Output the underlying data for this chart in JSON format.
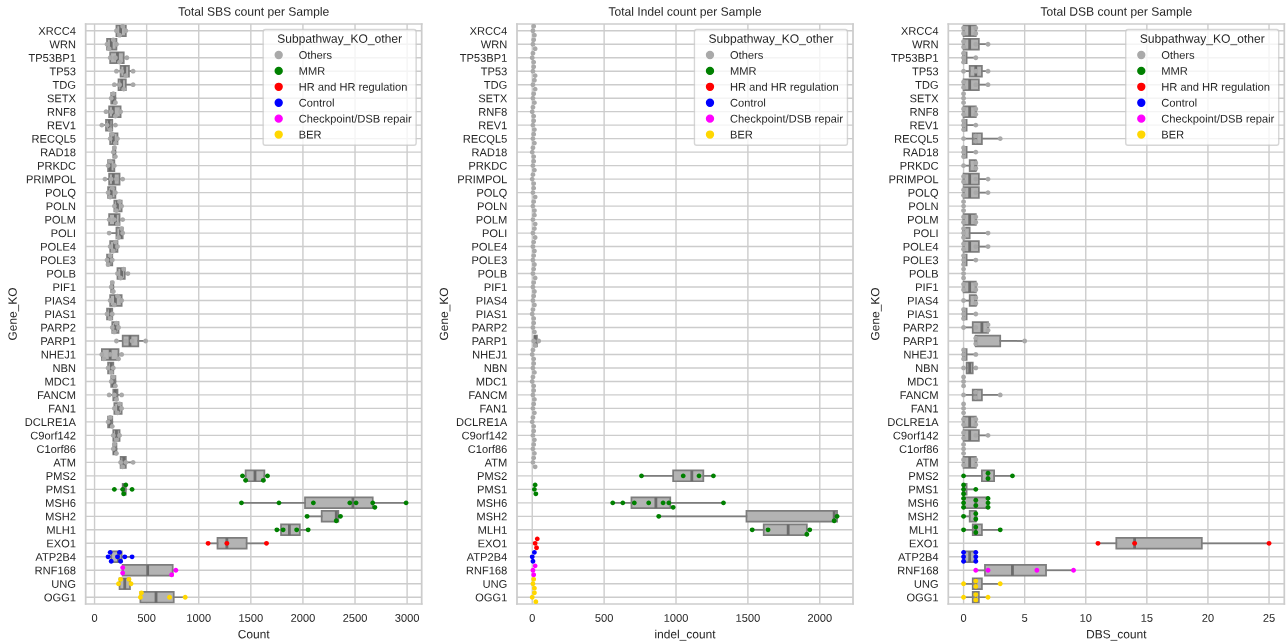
{
  "chart_data": [
    {
      "type": "box",
      "orientation": "horizontal",
      "title": "Total SBS count per Sample",
      "xlabel": "Count",
      "ylabel": "Gene_KO",
      "legend_title": "Subpathway_KO_other",
      "legend": "top right",
      "grid": true,
      "marker": "circle",
      "xlim": [
        -85,
        3140
      ],
      "xticks": [
        0,
        500,
        1000,
        1500,
        2000,
        2500,
        3000
      ],
      "categories": [
        "XRCC4",
        "WRN",
        "TP53BP1",
        "TP53",
        "TDG",
        "SETX",
        "RNF8",
        "REV1",
        "RECQL5",
        "RAD18",
        "PRKDC",
        "PRIMPOL",
        "POLQ",
        "POLN",
        "POLM",
        "POLI",
        "POLE4",
        "POLE3",
        "POLB",
        "PIF1",
        "PIAS4",
        "PIAS1",
        "PARP2",
        "PARP1",
        "NHEJ1",
        "NBN",
        "MDC1",
        "FANCM",
        "FAN1",
        "DCLRE1A",
        "C9orf142",
        "C1orf86",
        "ATM",
        "PMS2",
        "PMS1",
        "MSH6",
        "MSH2",
        "MLH1",
        "EXO1",
        "ATP2B4",
        "RNF168",
        "UNG",
        "OGG1"
      ],
      "series": [
        {
          "color": "#b3b3b3",
          "boxes": [
            {
              "low": 210,
              "q1": 210,
              "median": 250,
              "q3": 300,
              "high": 300
            },
            {
              "low": 120,
              "q1": 120,
              "median": 160,
              "q3": 210,
              "high": 210
            },
            {
              "low": 150,
              "q1": 150,
              "median": 220,
              "q3": 280,
              "high": 310
            },
            {
              "low": 210,
              "q1": 250,
              "median": 290,
              "q3": 330,
              "high": 370
            },
            {
              "low": 190,
              "q1": 230,
              "median": 260,
              "q3": 300,
              "high": 370
            },
            {
              "low": 160,
              "q1": 160,
              "median": 180,
              "q3": 200,
              "high": 200
            },
            {
              "low": 110,
              "q1": 140,
              "median": 180,
              "q3": 250,
              "high": 250
            },
            {
              "low": 70,
              "q1": 110,
              "median": 140,
              "q3": 170,
              "high": 200
            },
            {
              "low": 150,
              "q1": 150,
              "median": 180,
              "q3": 220,
              "high": 220
            },
            {
              "low": 180,
              "q1": 180,
              "median": 190,
              "q3": 200,
              "high": 200
            },
            {
              "low": 130,
              "q1": 130,
              "median": 150,
              "q3": 190,
              "high": 190
            },
            {
              "low": 100,
              "q1": 140,
              "median": 180,
              "q3": 240,
              "high": 270
            },
            {
              "low": 130,
              "q1": 130,
              "median": 160,
              "q3": 200,
              "high": 200
            },
            {
              "low": 190,
              "q1": 190,
              "median": 220,
              "q3": 260,
              "high": 260
            },
            {
              "low": 140,
              "q1": 140,
              "median": 200,
              "q3": 240,
              "high": 270
            },
            {
              "low": 140,
              "q1": 210,
              "median": 250,
              "q3": 270,
              "high": 270
            },
            {
              "low": 150,
              "q1": 150,
              "median": 190,
              "q3": 220,
              "high": 220
            },
            {
              "low": 120,
              "q1": 120,
              "median": 140,
              "q3": 170,
              "high": 170
            },
            {
              "low": 220,
              "q1": 220,
              "median": 260,
              "q3": 290,
              "high": 320
            },
            {
              "low": 160,
              "q1": 160,
              "median": 170,
              "q3": 180,
              "high": 180
            },
            {
              "low": 150,
              "q1": 150,
              "median": 200,
              "q3": 260,
              "high": 260
            },
            {
              "low": 120,
              "q1": 120,
              "median": 150,
              "q3": 170,
              "high": 170
            },
            {
              "low": 170,
              "q1": 170,
              "median": 200,
              "q3": 230,
              "high": 230
            },
            {
              "low": 210,
              "q1": 270,
              "median": 340,
              "q3": 420,
              "high": 490
            },
            {
              "low": 70,
              "q1": 70,
              "median": 150,
              "q3": 230,
              "high": 260
            },
            {
              "low": 130,
              "q1": 130,
              "median": 160,
              "q3": 180,
              "high": 180
            },
            {
              "low": 160,
              "q1": 160,
              "median": 180,
              "q3": 200,
              "high": 200
            },
            {
              "low": 140,
              "q1": 180,
              "median": 200,
              "q3": 220,
              "high": 260
            },
            {
              "low": 190,
              "q1": 190,
              "median": 230,
              "q3": 260,
              "high": 260
            },
            {
              "low": 130,
              "q1": 130,
              "median": 150,
              "q3": 170,
              "high": 170
            },
            {
              "low": 180,
              "q1": 180,
              "median": 210,
              "q3": 240,
              "high": 240
            },
            {
              "low": 180,
              "q1": 180,
              "median": 190,
              "q3": 210,
              "high": 210
            },
            {
              "low": 250,
              "q1": 250,
              "median": 280,
              "q3": 300,
              "high": 370
            },
            {
              "low": 1420,
              "q1": 1450,
              "median": 1540,
              "q3": 1630,
              "high": 1660
            },
            {
              "low": 270,
              "q1": 270,
              "median": 280,
              "q3": 300,
              "high": 300
            },
            {
              "low": 1410,
              "q1": 2020,
              "median": 2480,
              "q3": 2670,
              "high": 2990
            },
            {
              "low": 2040,
              "q1": 2180,
              "median": 2320,
              "q3": 2340,
              "high": 2360
            },
            {
              "low": 1750,
              "q1": 1790,
              "median": 1870,
              "q3": 1970,
              "high": 2050
            },
            {
              "low": 1090,
              "q1": 1180,
              "median": 1270,
              "q3": 1460,
              "high": 1650
            },
            {
              "low": 130,
              "q1": 160,
              "median": 230,
              "q3": 260,
              "high": 360
            },
            {
              "low": 270,
              "q1": 270,
              "median": 510,
              "q3": 750,
              "high": 780
            },
            {
              "low": 230,
              "q1": 240,
              "median": 290,
              "q3": 340,
              "high": 350
            },
            {
              "low": 440,
              "q1": 440,
              "median": 590,
              "q3": 760,
              "high": 870
            }
          ]
        },
        {
          "type": "scatter",
          "name": "Others",
          "color": "#a9a9a9",
          "x": [
            "XRCC4",
            "XRCC4",
            "XRCC4",
            "XRCC4",
            "WRN",
            "WRN",
            "WRN",
            "WRN",
            "TP53BP1",
            "TP53BP1",
            "TP53BP1",
            "TP53BP1",
            "TP53",
            "TP53",
            "TP53",
            "TP53",
            "TDG",
            "TDG",
            "TDG",
            "TDG",
            "SETX",
            "SETX",
            "SETX",
            "RNF8",
            "RNF8",
            "RNF8",
            "RNF8",
            "REV1",
            "REV1",
            "REV1",
            "REV1",
            "RECQL5",
            "RECQL5",
            "RECQL5",
            "RECQL5",
            "RAD18",
            "RAD18",
            "RAD18",
            "PRKDC",
            "PRKDC",
            "PRKDC",
            "PRIMPOL",
            "PRIMPOL",
            "PRIMPOL",
            "PRIMPOL",
            "POLQ",
            "POLQ",
            "POLQ",
            "POLQ",
            "POLN",
            "POLN",
            "POLN",
            "POLN",
            "POLM",
            "POLM",
            "POLM",
            "POLM",
            "POLI",
            "POLI",
            "POLI",
            "POLI",
            "POLE4",
            "POLE4",
            "POLE4",
            "POLE4",
            "POLE3",
            "POLE3",
            "POLE3",
            "POLE3",
            "POLB",
            "POLB",
            "POLB",
            "POLB",
            "PIF1",
            "PIF1",
            "PIF1",
            "PIAS4",
            "PIAS4",
            "PIAS4",
            "PIAS4",
            "PIAS1",
            "PIAS1",
            "PIAS1",
            "PARP2",
            "PARP2",
            "PARP2",
            "PARP2",
            "PARP1",
            "PARP1",
            "PARP1",
            "PARP1",
            "NHEJ1",
            "NHEJ1",
            "NHEJ1",
            "NHEJ1",
            "NHEJ1",
            "NBN",
            "NBN",
            "NBN",
            "MDC1",
            "MDC1",
            "MDC1",
            "FANCM",
            "FANCM",
            "FANCM",
            "FANCM",
            "FAN1",
            "FAN1",
            "FAN1",
            "FAN1",
            "DCLRE1A",
            "DCLRE1A",
            "DCLRE1A",
            "C9orf142",
            "C9orf142",
            "C9orf142",
            "C1orf86",
            "C1orf86",
            "C1orf86",
            "ATM",
            "ATM",
            "ATM",
            "ATM"
          ],
          "values": [
            210,
            240,
            270,
            300,
            120,
            140,
            180,
            210,
            150,
            200,
            240,
            310,
            210,
            260,
            300,
            370,
            190,
            240,
            280,
            370,
            160,
            180,
            200,
            110,
            160,
            200,
            250,
            70,
            120,
            150,
            200,
            150,
            170,
            200,
            220,
            180,
            190,
            200,
            130,
            150,
            190,
            100,
            160,
            210,
            270,
            130,
            150,
            170,
            200,
            190,
            210,
            240,
            260,
            140,
            190,
            220,
            270,
            140,
            230,
            260,
            270,
            150,
            180,
            200,
            220,
            120,
            130,
            150,
            170,
            220,
            250,
            280,
            320,
            160,
            170,
            180,
            150,
            190,
            220,
            260,
            120,
            150,
            170,
            170,
            190,
            210,
            230,
            210,
            300,
            360,
            490,
            70,
            90,
            150,
            230,
            260,
            130,
            160,
            180,
            160,
            180,
            200,
            140,
            190,
            210,
            260,
            190,
            220,
            240,
            260,
            130,
            150,
            170,
            180,
            210,
            240,
            180,
            190,
            210,
            250,
            270,
            300,
            370
          ]
        },
        {
          "type": "scatter",
          "name": "MMR",
          "color": "#008000",
          "x": [
            "PMS2",
            "PMS2",
            "PMS2",
            "PMS2",
            "PMS1",
            "PMS1",
            "PMS1",
            "PMS1",
            "PMS1",
            "MSH6",
            "MSH6",
            "MSH6",
            "MSH6",
            "MSH6",
            "MSH6",
            "MSH6",
            "MSH6",
            "MSH2",
            "MSH2",
            "MSH2",
            "MLH1",
            "MLH1",
            "MLH1",
            "MLH1"
          ],
          "values": [
            1420,
            1450,
            1620,
            1660,
            190,
            270,
            280,
            300,
            360,
            1410,
            1770,
            2100,
            2450,
            2510,
            2670,
            2690,
            2990,
            2040,
            2320,
            2360,
            1750,
            1810,
            1940,
            2050
          ]
        },
        {
          "type": "scatter",
          "name": "HR and HR regulation",
          "color": "#ff0000",
          "x": [
            "EXO1",
            "EXO1",
            "EXO1"
          ],
          "values": [
            1090,
            1270,
            1650
          ]
        },
        {
          "type": "scatter",
          "name": "Control",
          "color": "#0000ff",
          "x": [
            "ATP2B4",
            "ATP2B4",
            "ATP2B4",
            "ATP2B4",
            "ATP2B4",
            "ATP2B4",
            "ATP2B4",
            "ATP2B4"
          ],
          "values": [
            130,
            150,
            160,
            220,
            240,
            250,
            290,
            360
          ]
        },
        {
          "type": "scatter",
          "name": "Checkpoint/DSB repair",
          "color": "#ff00ff",
          "x": [
            "RNF168",
            "RNF168",
            "RNF168",
            "RNF168"
          ],
          "values": [
            270,
            270,
            740,
            780
          ]
        },
        {
          "type": "scatter",
          "name": "BER",
          "color": "#ffd700",
          "x": [
            "UNG",
            "UNG",
            "UNG",
            "UNG",
            "OGG1",
            "OGG1",
            "OGG1",
            "OGG1"
          ],
          "values": [
            230,
            250,
            330,
            350,
            440,
            450,
            720,
            870
          ]
        }
      ]
    },
    {
      "type": "box",
      "orientation": "horizontal",
      "title": "Total Indel count per Sample",
      "xlabel": "indel_count",
      "ylabel": "Gene_KO",
      "legend_title": "Subpathway_KO_other",
      "legend": "top right",
      "grid": true,
      "marker": "circle",
      "xlim": [
        -106,
        2231
      ],
      "xticks": [
        0,
        500,
        1000,
        1500,
        2000
      ],
      "categories": [
        "XRCC4",
        "WRN",
        "TP53BP1",
        "TP53",
        "TDG",
        "SETX",
        "RNF8",
        "REV1",
        "RECQL5",
        "RAD18",
        "PRKDC",
        "PRIMPOL",
        "POLQ",
        "POLN",
        "POLM",
        "POLI",
        "POLE4",
        "POLE3",
        "POLB",
        "PIF1",
        "PIAS4",
        "PIAS1",
        "PARP2",
        "PARP1",
        "NHEJ1",
        "NBN",
        "MDC1",
        "FANCM",
        "FAN1",
        "DCLRE1A",
        "C9orf142",
        "C1orf86",
        "ATM",
        "PMS2",
        "PMS1",
        "MSH6",
        "MSH2",
        "MLH1",
        "EXO1",
        "ATP2B4",
        "RNF168",
        "UNG",
        "OGG1"
      ],
      "series": [
        {
          "color": "#b3b3b3",
          "boxes": [
            null,
            null,
            null,
            null,
            null,
            null,
            null,
            null,
            null,
            null,
            null,
            null,
            null,
            null,
            null,
            null,
            null,
            null,
            null,
            null,
            null,
            null,
            null,
            {
              "low": 10,
              "q1": 15,
              "median": 20,
              "q3": 32.5,
              "high": 45
            },
            null,
            null,
            null,
            null,
            null,
            null,
            null,
            null,
            null,
            {
              "low": 760,
              "q1": 980,
              "median": 1110,
              "q3": 1190,
              "high": 1260
            },
            null,
            {
              "low": 560,
              "q1": 690,
              "median": 860,
              "q3": 960,
              "high": 1330
            },
            {
              "low": 880,
              "q1": 1490,
              "median": 2100,
              "q3": 2120,
              "high": 2120
            },
            {
              "low": 1530,
              "q1": 1610,
              "median": 1780,
              "q3": 1910,
              "high": 1930
            },
            null,
            null,
            null,
            null,
            null
          ]
        },
        {
          "type": "scatter",
          "name": "Others",
          "color": "#a9a9a9",
          "x": [
            "XRCC4",
            "XRCC4",
            "XRCC4",
            "WRN",
            "WRN",
            "WRN",
            "TP53BP1",
            "TP53BP1",
            "TP53BP1",
            "TP53",
            "TP53",
            "TP53",
            "TDG",
            "TDG",
            "TDG",
            "SETX",
            "SETX",
            "SETX",
            "RNF8",
            "RNF8",
            "RNF8",
            "REV1",
            "REV1",
            "REV1",
            "RECQL5",
            "RECQL5",
            "RECQL5",
            "RAD18",
            "RAD18",
            "RAD18",
            "PRKDC",
            "PRKDC",
            "PRKDC",
            "PRIMPOL",
            "PRIMPOL",
            "PRIMPOL",
            "POLQ",
            "POLQ",
            "POLQ",
            "POLN",
            "POLN",
            "POLN",
            "POLM",
            "POLM",
            "POLM",
            "POLI",
            "POLI",
            "POLI",
            "POLE4",
            "POLE4",
            "POLE4",
            "POLE3",
            "POLE3",
            "POLE3",
            "POLB",
            "POLB",
            "POLB",
            "PIF1",
            "PIF1",
            "PIF1",
            "PIAS4",
            "PIAS4",
            "PIAS4",
            "PIAS1",
            "PIAS1",
            "PIAS1",
            "PARP2",
            "PARP2",
            "PARP2",
            "PARP1",
            "PARP1",
            "PARP1",
            "NHEJ1",
            "NHEJ1",
            "NHEJ1",
            "NBN",
            "NBN",
            "NBN",
            "MDC1",
            "MDC1",
            "MDC1",
            "FANCM",
            "FANCM",
            "FANCM",
            "FAN1",
            "FAN1",
            "FAN1",
            "DCLRE1A",
            "DCLRE1A",
            "DCLRE1A",
            "C9orf142",
            "C9orf142",
            "C9orf142",
            "C1orf86",
            "C1orf86",
            "C1orf86",
            "ATM",
            "ATM",
            "ATM"
          ],
          "values": [
            5,
            10,
            15,
            5,
            10,
            20,
            0,
            5,
            10,
            5,
            10,
            20,
            5,
            15,
            20,
            5,
            10,
            15,
            0,
            5,
            10,
            5,
            10,
            15,
            5,
            10,
            15,
            0,
            5,
            10,
            5,
            10,
            15,
            0,
            5,
            10,
            5,
            10,
            20,
            5,
            10,
            15,
            5,
            15,
            20,
            5,
            15,
            20,
            5,
            10,
            15,
            5,
            10,
            15,
            5,
            10,
            20,
            5,
            10,
            15,
            5,
            10,
            15,
            0,
            5,
            10,
            5,
            10,
            15,
            10,
            20,
            45,
            0,
            5,
            10,
            5,
            10,
            15,
            0,
            5,
            10,
            5,
            10,
            15,
            5,
            10,
            15,
            0,
            5,
            10,
            5,
            10,
            15,
            5,
            10,
            15,
            5,
            10,
            20
          ]
        },
        {
          "type": "scatter",
          "name": "MMR",
          "color": "#008000",
          "x": [
            "PMS2",
            "PMS2",
            "PMS2",
            "PMS2",
            "PMS1",
            "PMS1",
            "PMS1",
            "MSH6",
            "MSH6",
            "MSH6",
            "MSH6",
            "MSH6",
            "MSH6",
            "MSH6",
            "MSH6",
            "MSH2",
            "MSH2",
            "MSH2",
            "MLH1",
            "MLH1",
            "MLH1",
            "MLH1"
          ],
          "values": [
            760,
            1050,
            1160,
            1260,
            15,
            20,
            25,
            560,
            630,
            710,
            810,
            910,
            950,
            980,
            1330,
            880,
            2100,
            2120,
            1530,
            1640,
            1910,
            1930
          ]
        },
        {
          "type": "scatter",
          "name": "HR and HR regulation",
          "color": "#ff0000",
          "x": [
            "EXO1",
            "EXO1",
            "EXO1"
          ],
          "values": [
            20,
            30,
            35
          ]
        },
        {
          "type": "scatter",
          "name": "Control",
          "color": "#0000ff",
          "x": [
            "ATP2B4",
            "ATP2B4",
            "ATP2B4"
          ],
          "values": [
            0,
            5,
            15
          ]
        },
        {
          "type": "scatter",
          "name": "Checkpoint/DSB repair",
          "color": "#ff00ff",
          "x": [
            "RNF168",
            "RNF168",
            "RNF168"
          ],
          "values": [
            5,
            10,
            20
          ]
        },
        {
          "type": "scatter",
          "name": "BER",
          "color": "#ffd700",
          "x": [
            "UNG",
            "UNG",
            "UNG",
            "OGG1",
            "OGG1",
            "OGG1"
          ],
          "values": [
            5,
            10,
            15,
            0,
            15,
            25
          ]
        }
      ]
    },
    {
      "type": "box",
      "orientation": "horizontal",
      "title": "Total DSB count per Sample",
      "xlabel": "DBS_count",
      "ylabel": "Gene_KO",
      "legend_title": "Subpathway_KO_other",
      "legend": "top right",
      "grid": true,
      "marker": "circle",
      "xlim": [
        -1.25,
        26.25
      ],
      "xticks": [
        0,
        5,
        10,
        15,
        20,
        25
      ],
      "categories": [
        "XRCC4",
        "WRN",
        "TP53BP1",
        "TP53",
        "TDG",
        "SETX",
        "RNF8",
        "REV1",
        "RECQL5",
        "RAD18",
        "PRKDC",
        "PRIMPOL",
        "POLQ",
        "POLN",
        "POLM",
        "POLI",
        "POLE4",
        "POLE3",
        "POLB",
        "PIF1",
        "PIAS4",
        "PIAS1",
        "PARP2",
        "PARP1",
        "NHEJ1",
        "NBN",
        "MDC1",
        "FANCM",
        "FAN1",
        "DCLRE1A",
        "C9orf142",
        "C1orf86",
        "ATM",
        "PMS2",
        "PMS1",
        "MSH6",
        "MSH2",
        "MLH1",
        "EXO1",
        "ATP2B4",
        "RNF168",
        "UNG",
        "OGG1"
      ],
      "series": [
        {
          "color": "#b3b3b3",
          "boxes": [
            {
              "low": 0,
              "q1": 0,
              "median": 0.5,
              "q3": 1,
              "high": 1
            },
            {
              "low": 0,
              "q1": 0,
              "median": 0.5,
              "q3": 1.25,
              "high": 2
            },
            {
              "low": 0,
              "q1": 0,
              "median": 0,
              "q3": 0.25,
              "high": 1
            },
            {
              "low": 0,
              "q1": 0.5,
              "median": 1,
              "q3": 1.5,
              "high": 2
            },
            {
              "low": 0,
              "q1": 0,
              "median": 0.5,
              "q3": 1.25,
              "high": 2
            },
            null,
            {
              "low": 0,
              "q1": 0,
              "median": 0.5,
              "q3": 1,
              "high": 1
            },
            {
              "low": 0,
              "q1": 0,
              "median": 0,
              "q3": 0.25,
              "high": 1
            },
            {
              "low": 0,
              "q1": 0.75,
              "median": 1,
              "q3": 1.5,
              "high": 3
            },
            {
              "low": 0,
              "q1": 0,
              "median": 0,
              "q3": 0.25,
              "high": 1
            },
            {
              "low": 0,
              "q1": 0.5,
              "median": 1,
              "q3": 1,
              "high": 1
            },
            {
              "low": 0,
              "q1": 0,
              "median": 0.5,
              "q3": 1.25,
              "high": 2
            },
            {
              "low": 0,
              "q1": 0,
              "median": 0.5,
              "q3": 1.25,
              "high": 2
            },
            null,
            {
              "low": 0,
              "q1": 0,
              "median": 0.5,
              "q3": 1,
              "high": 1
            },
            {
              "low": 0,
              "q1": 0,
              "median": 0,
              "q3": 0.5,
              "high": 2
            },
            {
              "low": 0,
              "q1": 0,
              "median": 0.5,
              "q3": 1.25,
              "high": 2
            },
            {
              "low": 0,
              "q1": 0,
              "median": 0,
              "q3": 0.25,
              "high": 1
            },
            null,
            {
              "low": 0,
              "q1": 0,
              "median": 0.5,
              "q3": 1,
              "high": 1
            },
            {
              "low": 0,
              "q1": 0.5,
              "median": 1,
              "q3": 1,
              "high": 1
            },
            {
              "low": 0,
              "q1": 0,
              "median": 0,
              "q3": 0.25,
              "high": 1
            },
            {
              "low": 0,
              "q1": 0.75,
              "median": 1.5,
              "q3": 2,
              "high": 2
            },
            {
              "low": 1,
              "q1": 1,
              "median": 1,
              "q3": 3,
              "high": 5
            },
            {
              "low": 0,
              "q1": 0,
              "median": 0,
              "q3": 0.25,
              "high": 1
            },
            {
              "low": 0,
              "q1": 0.25,
              "median": 0.5,
              "q3": 0.75,
              "high": 1
            },
            null,
            {
              "low": 0,
              "q1": 0.75,
              "median": 1,
              "q3": 1.5,
              "high": 3
            },
            null,
            {
              "low": 0,
              "q1": 0,
              "median": 0.5,
              "q3": 1,
              "high": 1
            },
            {
              "low": 0,
              "q1": 0,
              "median": 0.5,
              "q3": 1.25,
              "high": 2
            },
            null,
            {
              "low": 0,
              "q1": 0,
              "median": 0.5,
              "q3": 1,
              "high": 1
            },
            {
              "low": 0,
              "q1": 1.5,
              "median": 2,
              "q3": 2.5,
              "high": 4
            },
            {
              "low": 0,
              "q1": 0,
              "median": 0,
              "q3": 0.25,
              "high": 1
            },
            {
              "low": 0,
              "q1": 0,
              "median": 1,
              "q3": 2,
              "high": 2
            },
            {
              "low": 0,
              "q1": 0.5,
              "median": 1,
              "q3": 1,
              "high": 1
            },
            {
              "low": 0,
              "q1": 0.75,
              "median": 1,
              "q3": 1.5,
              "high": 3
            },
            {
              "low": 11,
              "q1": 12.5,
              "median": 14,
              "q3": 19.5,
              "high": 25
            },
            {
              "low": 0,
              "q1": 0,
              "median": 0.5,
              "q3": 1,
              "high": 1
            },
            {
              "low": 1,
              "q1": 1.75,
              "median": 4,
              "q3": 6.75,
              "high": 9
            },
            {
              "low": 0,
              "q1": 0.75,
              "median": 1,
              "q3": 1.5,
              "high": 3
            },
            {
              "low": 0,
              "q1": 0.75,
              "median": 1,
              "q3": 1.25,
              "high": 2
            }
          ]
        },
        {
          "type": "scatter",
          "name": "Others",
          "color": "#a9a9a9",
          "x": [
            "XRCC4",
            "XRCC4",
            "XRCC4",
            "XRCC4",
            "WRN",
            "WRN",
            "WRN",
            "WRN",
            "TP53BP1",
            "TP53BP1",
            "TP53BP1",
            "TP53BP1",
            "TP53",
            "TP53",
            "TP53",
            "TDG",
            "TDG",
            "TDG",
            "TDG",
            "SETX",
            "SETX",
            "SETX",
            "RNF8",
            "RNF8",
            "RNF8",
            "RNF8",
            "REV1",
            "REV1",
            "REV1",
            "REV1",
            "RECQL5",
            "RECQL5",
            "RECQL5",
            "RECQL5",
            "RAD18",
            "RAD18",
            "RAD18",
            "RAD18",
            "PRKDC",
            "PRKDC",
            "PRKDC",
            "PRIMPOL",
            "PRIMPOL",
            "PRIMPOL",
            "PRIMPOL",
            "POLQ",
            "POLQ",
            "POLQ",
            "POLQ",
            "POLN",
            "POLN",
            "POLN",
            "POLM",
            "POLM",
            "POLM",
            "POLM",
            "POLI",
            "POLI",
            "POLI",
            "POLI",
            "POLE4",
            "POLE4",
            "POLE4",
            "POLE4",
            "POLE3",
            "POLE3",
            "POLE3",
            "POLE3",
            "POLB",
            "POLB",
            "POLB",
            "PIF1",
            "PIF1",
            "PIF1",
            "PIF1",
            "PIAS4",
            "PIAS4",
            "PIAS4",
            "PIAS1",
            "PIAS1",
            "PIAS1",
            "PIAS1",
            "PARP2",
            "PARP2",
            "PARP2",
            "PARP2",
            "PARP1",
            "PARP1",
            "PARP1",
            "NHEJ1",
            "NHEJ1",
            "NHEJ1",
            "NHEJ1",
            "NBN",
            "NBN",
            "MDC1",
            "MDC1",
            "MDC1",
            "FANCM",
            "FANCM",
            "FANCM",
            "FANCM",
            "FAN1",
            "FAN1",
            "FAN1",
            "DCLRE1A",
            "DCLRE1A",
            "DCLRE1A",
            "DCLRE1A",
            "C9orf142",
            "C9orf142",
            "C9orf142",
            "C9orf142",
            "C1orf86",
            "C1orf86",
            "C1orf86",
            "ATM",
            "ATM",
            "ATM",
            "ATM"
          ],
          "values": [
            0,
            0,
            1,
            1,
            0,
            0,
            1,
            2,
            0,
            0,
            0,
            1,
            0,
            1,
            2,
            0,
            0,
            1,
            2,
            0,
            0,
            0,
            0,
            0,
            1,
            1,
            0,
            0,
            0,
            1,
            0,
            1,
            1,
            3,
            0,
            0,
            0,
            1,
            0,
            1,
            1,
            0,
            0,
            1,
            2,
            0,
            0,
            1,
            2,
            0,
            0,
            0,
            0,
            0,
            1,
            1,
            0,
            0,
            0,
            2,
            0,
            0,
            1,
            2,
            0,
            0,
            0,
            1,
            0,
            0,
            0,
            0,
            0,
            1,
            1,
            0,
            1,
            1,
            0,
            0,
            0,
            1,
            0,
            1,
            2,
            2,
            1,
            1,
            5,
            0,
            0,
            0,
            1,
            0,
            1,
            0,
            0,
            0,
            0,
            1,
            1,
            3,
            0,
            0,
            0,
            0,
            0,
            1,
            1,
            0,
            0,
            1,
            2,
            0,
            0,
            0,
            0,
            0,
            1,
            1
          ]
        },
        {
          "type": "scatter",
          "name": "MMR",
          "color": "#008000",
          "x": [
            "PMS2",
            "PMS2",
            "PMS2",
            "PMS2",
            "PMS1",
            "PMS1",
            "PMS1",
            "PMS1",
            "MSH6",
            "MSH6",
            "MSH6",
            "MSH6",
            "MSH6",
            "MSH6",
            "MSH6",
            "MSH6",
            "MSH2",
            "MSH2",
            "MSH2",
            "MLH1",
            "MLH1",
            "MLH1",
            "MLH1"
          ],
          "values": [
            0,
            2,
            2,
            4,
            0,
            0,
            0,
            1,
            0,
            0,
            0,
            1,
            1,
            2,
            2,
            2,
            0,
            1,
            1,
            0,
            1,
            1,
            3
          ]
        },
        {
          "type": "scatter",
          "name": "HR and HR regulation",
          "color": "#ff0000",
          "x": [
            "EXO1",
            "EXO1",
            "EXO1"
          ],
          "values": [
            11,
            14,
            25
          ]
        },
        {
          "type": "scatter",
          "name": "Control",
          "color": "#0000ff",
          "x": [
            "ATP2B4",
            "ATP2B4",
            "ATP2B4",
            "ATP2B4",
            "ATP2B4",
            "ATP2B4"
          ],
          "values": [
            0,
            0,
            0,
            1,
            1,
            1
          ]
        },
        {
          "type": "scatter",
          "name": "Checkpoint/DSB repair",
          "color": "#ff00ff",
          "x": [
            "RNF168",
            "RNF168",
            "RNF168",
            "RNF168"
          ],
          "values": [
            1,
            2,
            6,
            9
          ]
        },
        {
          "type": "scatter",
          "name": "BER",
          "color": "#ffd700",
          "x": [
            "UNG",
            "UNG",
            "UNG",
            "UNG",
            "OGG1",
            "OGG1",
            "OGG1",
            "OGG1"
          ],
          "values": [
            0,
            1,
            1,
            3,
            0,
            1,
            1,
            2
          ]
        }
      ]
    }
  ]
}
